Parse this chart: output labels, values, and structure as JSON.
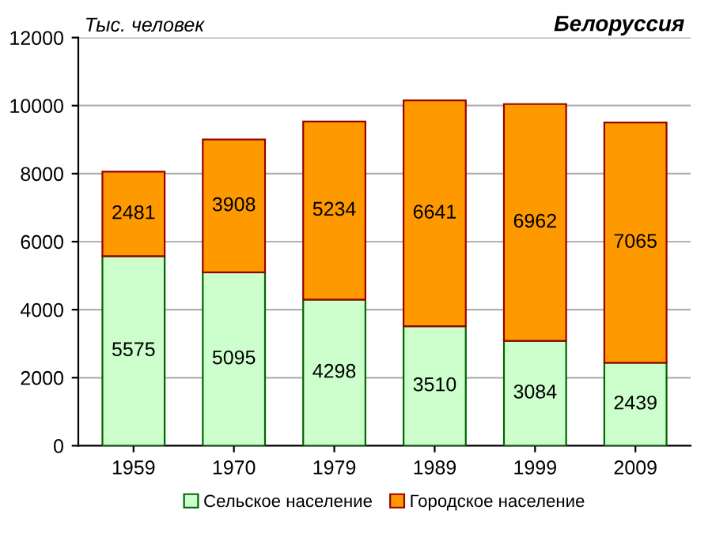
{
  "chart_data": {
    "type": "bar",
    "title": "Белоруссия",
    "ylabel": "Тыс. человек",
    "categories": [
      "1959",
      "1970",
      "1979",
      "1989",
      "1999",
      "2009"
    ],
    "series": [
      {
        "name": "Сельское население",
        "color": "#ccffcc",
        "values": [
          5575,
          5095,
          4298,
          3510,
          3084,
          2439
        ]
      },
      {
        "name": "Городское население",
        "color": "#ff9900",
        "values": [
          2481,
          3908,
          5234,
          6641,
          6962,
          7065
        ]
      }
    ],
    "stacked": true,
    "data_labels": true,
    "ylim": [
      0,
      12000
    ],
    "yticks": [
      0,
      2000,
      4000,
      6000,
      8000,
      10000,
      12000
    ],
    "grid": "y",
    "legend": "bottom"
  }
}
